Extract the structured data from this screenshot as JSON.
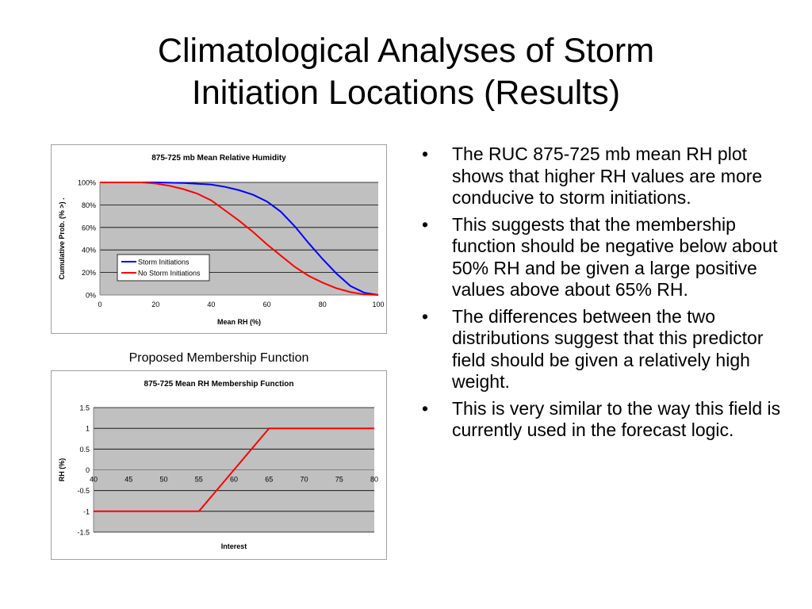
{
  "slide": {
    "title_line1": "Climatological Analyses of Storm",
    "title_line2": "Initiation Locations (Results)",
    "caption": "Proposed Membership Function",
    "bullets": [
      "The RUC 875-725 mb mean RH plot shows that higher RH values are more conducive to storm initiations.",
      "This suggests that the membership function should be negative below about 50% RH and be given a large positive values above about 65% RH.",
      "The differences between the two distributions suggest that this predictor field should be given a relatively high weight.",
      "This is very similar to the way this field is currently used in the forecast logic."
    ],
    "bullet_symbol": "•"
  },
  "chart_data": [
    {
      "type": "line",
      "title": "875-725 mb Mean Relative Humidity",
      "xlabel": "Mean RH (%)",
      "ylabel": "Cumulative Prob. (% >) .",
      "xlim": [
        0,
        100
      ],
      "ylim": [
        0,
        100
      ],
      "x_ticks": [
        0,
        20,
        40,
        60,
        80,
        100
      ],
      "y_ticks": [
        0,
        20,
        40,
        60,
        80,
        100
      ],
      "y_tick_labels": [
        "0%",
        "20%",
        "40%",
        "60%",
        "80%",
        "100%"
      ],
      "grid": "horizontal",
      "plot_background": "#c0c0c0",
      "legend_position": "lower-left",
      "series": [
        {
          "name": "Storm Initiations",
          "color": "#0000ff",
          "x": [
            0,
            20,
            30,
            40,
            45,
            50,
            55,
            60,
            65,
            70,
            75,
            80,
            85,
            90,
            95,
            100
          ],
          "y": [
            100,
            100,
            99.5,
            98,
            96,
            93,
            89,
            83,
            74,
            61,
            46,
            32,
            19,
            8,
            2,
            0
          ]
        },
        {
          "name": "No Storm Initiations",
          "color": "#ff0000",
          "x": [
            0,
            15,
            20,
            25,
            30,
            35,
            40,
            45,
            50,
            55,
            60,
            65,
            70,
            75,
            80,
            85,
            90,
            95,
            100
          ],
          "y": [
            100,
            100,
            99,
            97,
            94,
            90,
            84,
            75,
            66,
            56,
            45,
            35,
            25,
            17,
            11,
            6,
            2.5,
            0.5,
            0
          ]
        }
      ]
    },
    {
      "type": "line",
      "title": "875-725 Mean RH Membership Function",
      "xlabel": "Interest",
      "ylabel": "RH (%)",
      "xlim": [
        40,
        80
      ],
      "ylim": [
        -1.5,
        1.5
      ],
      "x_ticks": [
        40,
        45,
        50,
        55,
        60,
        65,
        70,
        75,
        80
      ],
      "y_ticks": [
        -1.5,
        -1,
        -0.5,
        0,
        0.5,
        1,
        1.5
      ],
      "grid": "horizontal",
      "plot_background": "#c0c0c0",
      "series": [
        {
          "color": "#ff0000",
          "x": [
            40,
            55,
            65,
            80
          ],
          "y": [
            -1,
            -1,
            1,
            1
          ]
        }
      ]
    }
  ]
}
